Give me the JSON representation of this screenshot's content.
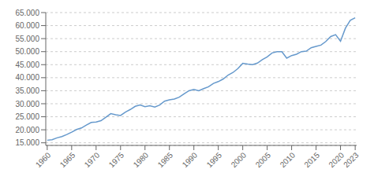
{
  "chart_data": {
    "type": "line",
    "x": [
      1960,
      1961,
      1962,
      1963,
      1964,
      1965,
      1966,
      1967,
      1968,
      1969,
      1970,
      1971,
      1972,
      1973,
      1974,
      1975,
      1976,
      1977,
      1978,
      1979,
      1980,
      1981,
      1982,
      1983,
      1984,
      1985,
      1986,
      1987,
      1988,
      1989,
      1990,
      1991,
      1992,
      1993,
      1994,
      1995,
      1996,
      1997,
      1998,
      1999,
      2000,
      2001,
      2002,
      2003,
      2004,
      2005,
      2006,
      2007,
      2008,
      2009,
      2010,
      2011,
      2012,
      2013,
      2014,
      2015,
      2016,
      2017,
      2018,
      2019,
      2020,
      2021,
      2022,
      2023
    ],
    "values": [
      16000,
      16200,
      16900,
      17400,
      18200,
      19100,
      20100,
      20700,
      21800,
      22800,
      23000,
      23500,
      24800,
      26200,
      25800,
      25500,
      26800,
      27800,
      29000,
      29500,
      28900,
      29200,
      28700,
      29500,
      31000,
      31500,
      31800,
      32500,
      33800,
      35000,
      35500,
      35000,
      35800,
      36500,
      37800,
      38500,
      39500,
      41000,
      42000,
      43500,
      45500,
      45200,
      45000,
      45600,
      46900,
      48000,
      49500,
      50000,
      50000,
      47500,
      48500,
      49000,
      50000,
      50200,
      51500,
      52000,
      52500,
      53900,
      55800,
      56500,
      54000,
      59000,
      62000,
      63000
    ],
    "color": "#6699cc",
    "xlim": [
      1959.7,
      2023.3
    ],
    "xticks": [
      1960,
      1965,
      1970,
      1975,
      1980,
      1985,
      1990,
      1995,
      2000,
      2005,
      2010,
      2015,
      2020,
      2023
    ],
    "ylim": [
      14000,
      65000
    ],
    "yticks": [
      {
        "value": 15000,
        "label": "15.000"
      },
      {
        "value": 20000,
        "label": "20.000"
      },
      {
        "value": 25000,
        "label": "25.000"
      },
      {
        "value": 30000,
        "label": "30.000"
      },
      {
        "value": 35000,
        "label": "35.000"
      },
      {
        "value": 40000,
        "label": "40.000"
      },
      {
        "value": 45000,
        "label": "45.000"
      },
      {
        "value": 50000,
        "label": "50.000"
      },
      {
        "value": 55000,
        "label": "55.000"
      },
      {
        "value": 60000,
        "label": "60.000"
      },
      {
        "value": 65000,
        "label": "65.000"
      }
    ],
    "grid": true
  }
}
